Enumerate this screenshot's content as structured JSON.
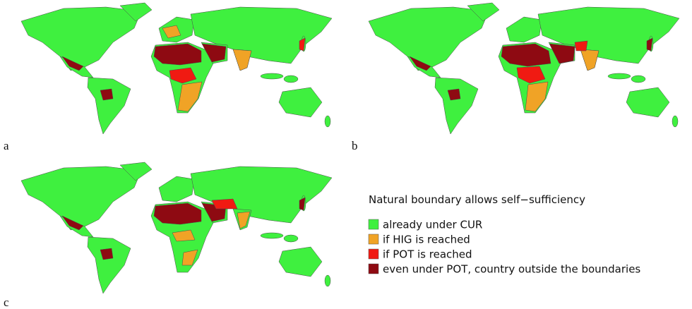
{
  "panels": [
    {
      "label": "a"
    },
    {
      "label": "b"
    },
    {
      "label": "c"
    }
  ],
  "legend": {
    "title": "Natural boundary allows self−sufficiency",
    "items": [
      {
        "label": "already under CUR",
        "color": "#3ff03f"
      },
      {
        "label": "if HIG is reached",
        "color": "#f0a326"
      },
      {
        "label": "if POT is reached",
        "color": "#f01a12"
      },
      {
        "label": "even under POT, country outside the boundaries",
        "color": "#8e0a12"
      }
    ]
  }
}
